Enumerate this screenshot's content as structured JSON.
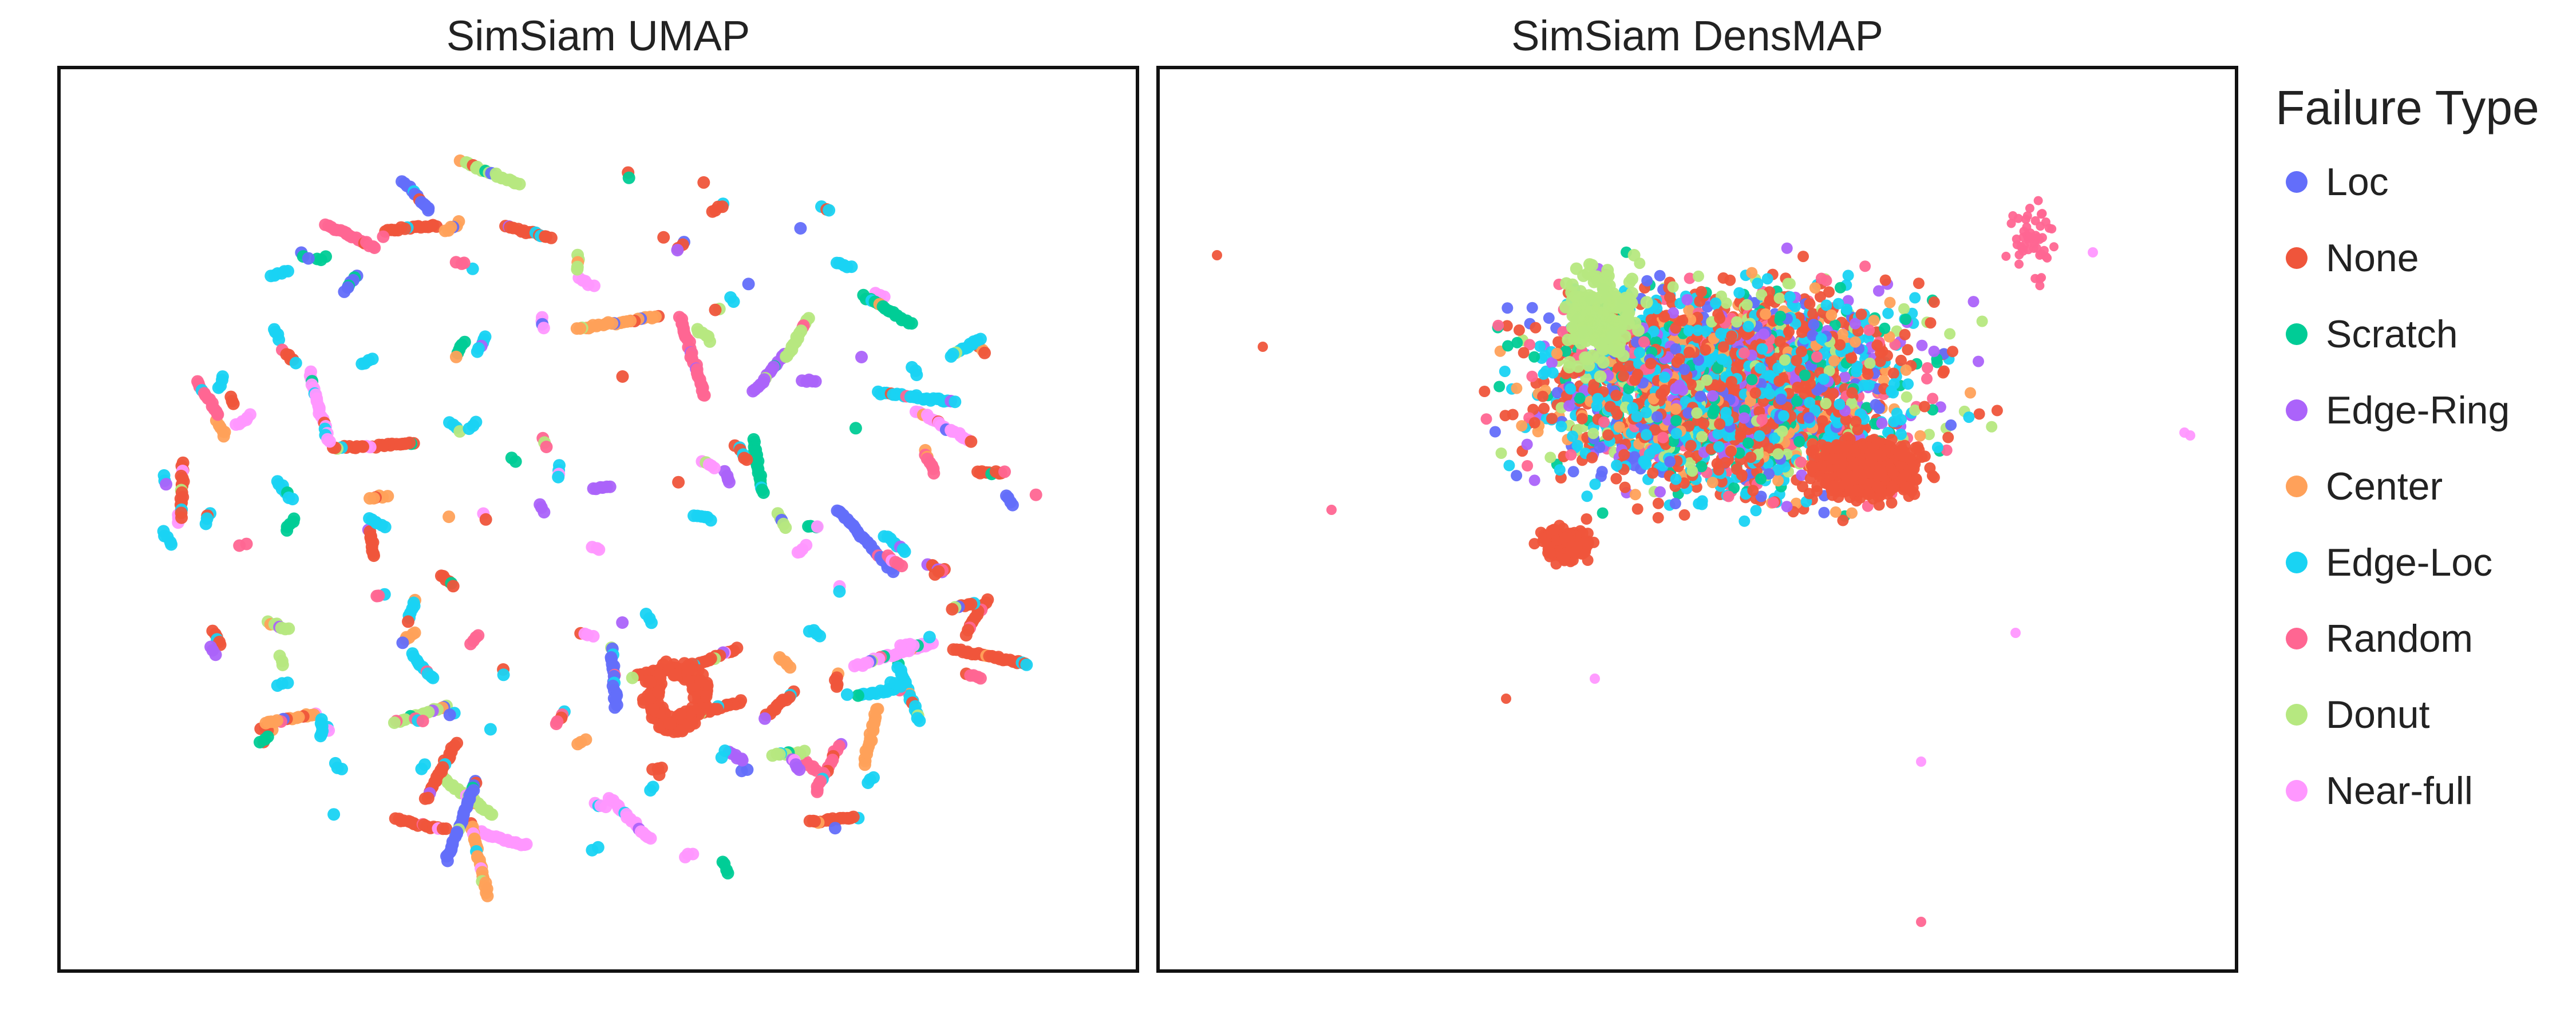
{
  "chart_data": [
    {
      "type": "scatter",
      "title": "SimSiam UMAP",
      "xlabel": "",
      "ylabel": "",
      "grid": false
    },
    {
      "type": "scatter",
      "title": "SimSiam DensMAP",
      "xlabel": "",
      "ylabel": "",
      "grid": false
    }
  ],
  "legend": {
    "title": "Failure Type",
    "placement": "right",
    "entries": [
      {
        "label": "Loc",
        "color": "#636efa"
      },
      {
        "label": "None",
        "color": "#ef553b"
      },
      {
        "label": "Scratch",
        "color": "#00cc96"
      },
      {
        "label": "Edge-Ring",
        "color": "#ab63fa"
      },
      {
        "label": "Center",
        "color": "#ffa15a"
      },
      {
        "label": "Edge-Loc",
        "color": "#19d3f3"
      },
      {
        "label": "Random",
        "color": "#ff6692"
      },
      {
        "label": "Donut",
        "color": "#b6e880"
      },
      {
        "label": "Near-full",
        "color": "#ff97ff"
      }
    ]
  }
}
